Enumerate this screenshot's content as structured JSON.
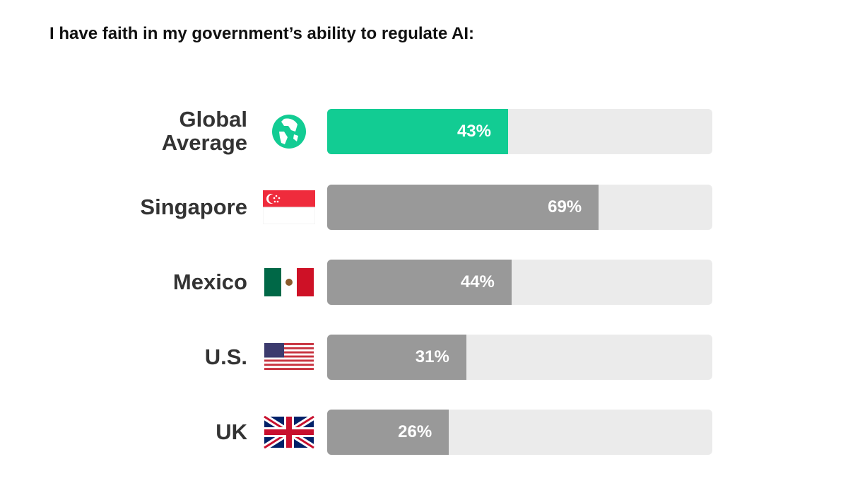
{
  "chart_data": {
    "type": "bar",
    "orientation": "horizontal",
    "title": "I have faith in my government’s ability to regulate AI:",
    "categories": [
      "Global Average",
      "Singapore",
      "Mexico",
      "U.S.",
      "UK"
    ],
    "values": [
      43,
      69,
      44,
      31,
      26
    ],
    "value_labels": [
      "43%",
      "69%",
      "44%",
      "31%",
      "26%"
    ],
    "icons": [
      "globe-icon",
      "singapore-flag-icon",
      "mexico-flag-icon",
      "us-flag-icon",
      "uk-flag-icon"
    ],
    "xlabel": "",
    "ylabel": "",
    "xlim": [
      0,
      100
    ],
    "grid": false,
    "colors": {
      "highlight": "#12cc93",
      "default": "#999999",
      "track": "#ebebeb"
    }
  }
}
